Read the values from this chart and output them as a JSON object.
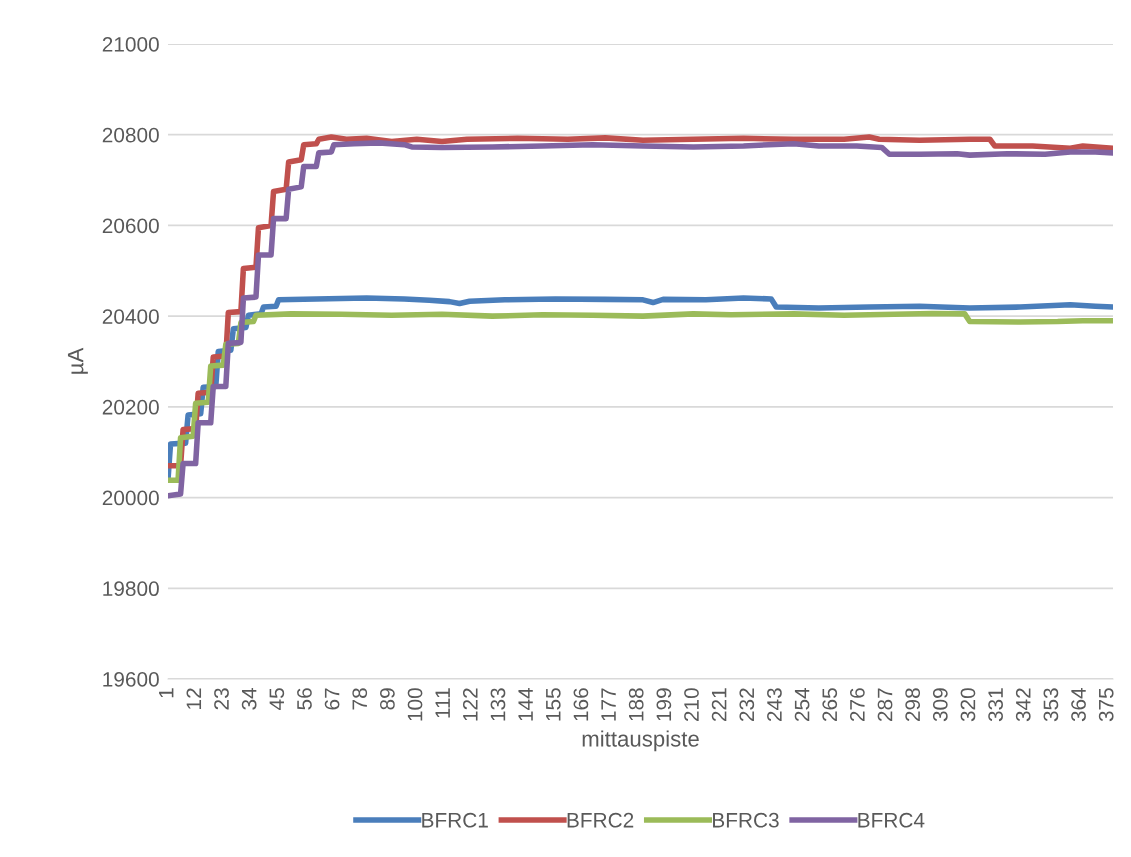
{
  "chart_data": {
    "type": "line",
    "xlabel": "mittauspiste",
    "ylabel": "µA",
    "xlim": [
      1,
      377
    ],
    "xticks": [
      1,
      12,
      23,
      34,
      45,
      56,
      67,
      78,
      89,
      100,
      111,
      122,
      133,
      144,
      155,
      166,
      177,
      188,
      199,
      210,
      221,
      232,
      243,
      254,
      265,
      276,
      287,
      298,
      309,
      320,
      331,
      342,
      353,
      364,
      375
    ],
    "ylim": [
      19600,
      21000
    ],
    "yticks": [
      19600,
      19800,
      20000,
      20200,
      20400,
      20600,
      20800,
      21000
    ],
    "grid": "y",
    "legend": "bottom",
    "marker": "none",
    "line_style": "solid",
    "series": [
      {
        "name": "BFRC1",
        "color": "#4a7ebb",
        "x": [
          1,
          2,
          8,
          9,
          14,
          15,
          20,
          21,
          26,
          27,
          32,
          33,
          38,
          39,
          44,
          45,
          60,
          80,
          95,
          105,
          113,
          117,
          121,
          135,
          155,
          175,
          190,
          194,
          198,
          215,
          230,
          241,
          243,
          260,
          280,
          300,
          320,
          340,
          360,
          370,
          377
        ],
        "values": [
          20040,
          20118,
          20120,
          20182,
          20185,
          20243,
          20245,
          20322,
          20325,
          20372,
          20375,
          20402,
          20405,
          20420,
          20422,
          20436,
          20438,
          20440,
          20438,
          20435,
          20432,
          20428,
          20433,
          20436,
          20438,
          20437,
          20436,
          20430,
          20437,
          20436,
          20440,
          20438,
          20420,
          20418,
          20420,
          20422,
          20418,
          20420,
          20425,
          20422,
          20420
        ]
      },
      {
        "name": "BFRC2",
        "color": "#c0504d",
        "x": [
          1,
          6,
          7,
          12,
          13,
          18,
          19,
          24,
          25,
          30,
          31,
          36,
          37,
          42,
          43,
          48,
          49,
          54,
          55,
          60,
          61,
          66,
          72,
          80,
          90,
          100,
          110,
          120,
          140,
          160,
          175,
          190,
          210,
          230,
          250,
          270,
          280,
          284,
          300,
          320,
          328,
          330,
          345,
          360,
          365,
          377
        ],
        "values": [
          20070,
          20070,
          20150,
          20152,
          20230,
          20232,
          20310,
          20312,
          20408,
          20410,
          20505,
          20508,
          20595,
          20600,
          20675,
          20680,
          20740,
          20745,
          20778,
          20780,
          20790,
          20795,
          20790,
          20792,
          20785,
          20790,
          20785,
          20790,
          20792,
          20790,
          20793,
          20788,
          20790,
          20792,
          20790,
          20790,
          20795,
          20790,
          20788,
          20790,
          20790,
          20775,
          20775,
          20770,
          20775,
          20770
        ]
      },
      {
        "name": "BFRC3",
        "color": "#9bbb59",
        "x": [
          1,
          5,
          6,
          11,
          12,
          17,
          18,
          23,
          24,
          29,
          30,
          35,
          36,
          50,
          70,
          90,
          110,
          130,
          150,
          170,
          190,
          210,
          225,
          250,
          270,
          290,
          305,
          318,
          320,
          340,
          355,
          365,
          377
        ],
        "values": [
          20038,
          20038,
          20132,
          20135,
          20208,
          20210,
          20290,
          20292,
          20338,
          20340,
          20386,
          20388,
          20402,
          20405,
          20404,
          20402,
          20404,
          20400,
          20403,
          20402,
          20400,
          20405,
          20403,
          20405,
          20402,
          20404,
          20406,
          20405,
          20388,
          20387,
          20388,
          20390,
          20390
        ]
      },
      {
        "name": "BFRC4",
        "color": "#8064a2",
        "x": [
          1,
          6,
          7,
          12,
          13,
          18,
          19,
          24,
          25,
          30,
          31,
          36,
          37,
          42,
          43,
          48,
          49,
          54,
          55,
          60,
          61,
          66,
          67,
          75,
          85,
          95,
          98,
          110,
          130,
          150,
          170,
          190,
          210,
          230,
          240,
          250,
          260,
          275,
          285,
          288,
          300,
          315,
          320,
          335,
          350,
          360,
          370,
          377
        ],
        "values": [
          20004,
          20008,
          20075,
          20075,
          20165,
          20165,
          20245,
          20245,
          20340,
          20342,
          20440,
          20442,
          20535,
          20535,
          20615,
          20615,
          20680,
          20685,
          20730,
          20730,
          20760,
          20762,
          20778,
          20780,
          20782,
          20778,
          20773,
          20772,
          20773,
          20775,
          20778,
          20775,
          20773,
          20775,
          20778,
          20780,
          20775,
          20775,
          20772,
          20757,
          20757,
          20758,
          20755,
          20758,
          20757,
          20762,
          20762,
          20760
        ]
      }
    ]
  }
}
